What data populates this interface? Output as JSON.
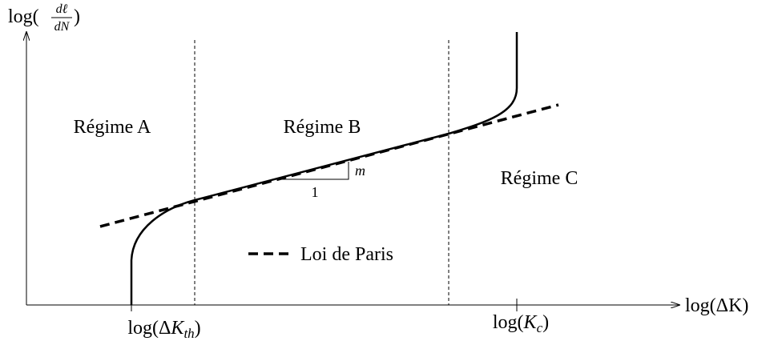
{
  "y_axis_label": {
    "prefix": "log(",
    "numerator": "dℓ",
    "denominator": "dN",
    "suffix": ")"
  },
  "x_axis_label": "log(ΔK)",
  "regimes": [
    "Régime A",
    "Régime B",
    "Régime C"
  ],
  "legend": "Loi de Paris",
  "slope": {
    "rise": "m",
    "run": "1"
  },
  "x_ticks": [
    {
      "base": "log(ΔK",
      "sub": "th",
      "close": ")"
    },
    {
      "base": "log(K",
      "sub": "c",
      "close": ")"
    }
  ]
}
